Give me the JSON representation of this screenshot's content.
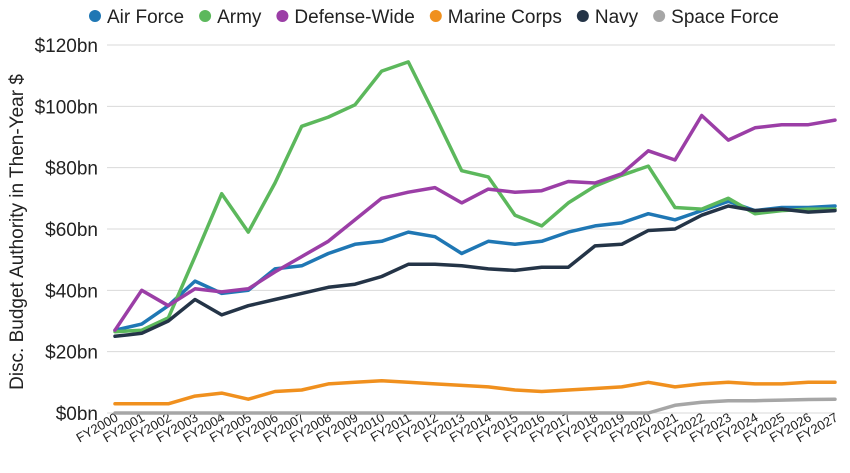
{
  "chart_data": {
    "type": "line",
    "title": "",
    "xlabel": "",
    "ylabel": "Disc. Budget Authority in Then-Year $",
    "ylim": [
      0,
      120
    ],
    "y_ticks": [
      0,
      20,
      40,
      60,
      80,
      100,
      120
    ],
    "y_tick_labels": [
      "$0bn",
      "$20bn",
      "$40bn",
      "$60bn",
      "$80bn",
      "$100bn",
      "$120bn"
    ],
    "legend_position": "top",
    "grid": true,
    "categories": [
      "FY2000",
      "FY2001",
      "FY2002",
      "FY2003",
      "FY2004",
      "FY2005",
      "FY2006",
      "FY2007",
      "FY2008",
      "FY2009",
      "FY2010",
      "FY2011",
      "FY2012",
      "FY2013",
      "FY2014",
      "FY2015",
      "FY2016",
      "FY2017",
      "FY2018",
      "FY2019",
      "FY2020",
      "FY2021",
      "FY2022",
      "FY2023",
      "FY2024",
      "FY2025",
      "FY2026",
      "FY2027"
    ],
    "series": [
      {
        "name": "Air Force",
        "color": "#1f77b4",
        "values": [
          27,
          29,
          35,
          43,
          39,
          40,
          47,
          48,
          52,
          55,
          56,
          59,
          57.5,
          52,
          56,
          55,
          56,
          59,
          61,
          62,
          65,
          63,
          66,
          69,
          66,
          67,
          67,
          67.5
        ]
      },
      {
        "name": "Army",
        "color": "#5cb85c",
        "values": [
          26.5,
          27,
          31,
          51,
          71.5,
          59,
          75,
          93.5,
          96.5,
          100.5,
          111.5,
          114.5,
          97,
          79,
          77,
          64.5,
          61,
          68.5,
          74,
          77.5,
          80.5,
          67,
          66.5,
          70,
          65,
          66,
          66.5,
          66.5
        ]
      },
      {
        "name": "Defense-Wide",
        "color": "#9b3ea6",
        "values": [
          27,
          40,
          35,
          40.5,
          39.5,
          40.5,
          46,
          51,
          56,
          63,
          70,
          72,
          73.5,
          68.5,
          73,
          72,
          72.5,
          75.5,
          75,
          78,
          85.5,
          82.5,
          97,
          89,
          93,
          94,
          94,
          95.5
        ]
      },
      {
        "name": "Marine Corps",
        "color": "#f0901e",
        "values": [
          3,
          3,
          3,
          5.5,
          6.5,
          4.5,
          7,
          7.5,
          9.5,
          10,
          10.5,
          10,
          9.5,
          9,
          8.5,
          7.5,
          7,
          7.5,
          8,
          8.5,
          10,
          8.5,
          9.5,
          10,
          9.5,
          9.5,
          10,
          10
        ]
      },
      {
        "name": "Navy",
        "color": "#243447",
        "values": [
          25,
          26,
          30,
          37,
          32,
          35,
          37,
          39,
          41,
          42,
          44.5,
          48.5,
          48.5,
          48,
          47,
          46.5,
          47.5,
          47.5,
          54.5,
          55,
          59.5,
          60,
          64.5,
          67.5,
          66,
          66.5,
          65.5,
          66
        ]
      },
      {
        "name": "Space Force",
        "color": "#a6a6a6",
        "values": [
          0,
          0,
          0,
          0,
          0,
          0,
          0,
          0,
          0,
          0,
          0,
          0,
          0,
          0,
          0,
          0,
          0,
          0,
          0,
          0,
          0,
          2.5,
          3.5,
          4,
          4,
          4.2,
          4.4,
          4.5
        ]
      }
    ]
  }
}
